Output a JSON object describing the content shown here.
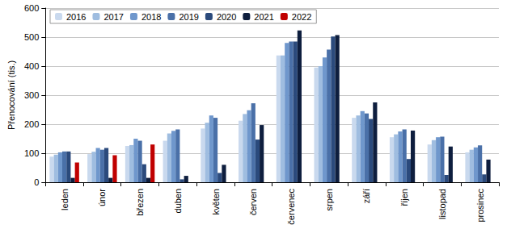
{
  "chart_data": {
    "type": "bar",
    "y_label": "Přenocování (tis.)",
    "categories": [
      "leden",
      "únor",
      "březen",
      "duben",
      "květen",
      "červen",
      "červenec",
      "srpen",
      "září",
      "říjen",
      "listopad",
      "prosinec"
    ],
    "series": [
      {
        "name": "2016",
        "color": "#c9d9ee",
        "values": [
          88,
          97,
          125,
          143,
          185,
          212,
          437,
          395,
          222,
          155,
          130,
          103
        ]
      },
      {
        "name": "2017",
        "color": "#9fbde0",
        "values": [
          95,
          105,
          128,
          168,
          205,
          235,
          437,
          400,
          230,
          165,
          145,
          112
        ]
      },
      {
        "name": "2018",
        "color": "#6f97cc",
        "values": [
          103,
          118,
          150,
          177,
          230,
          248,
          480,
          430,
          245,
          175,
          155,
          120
        ]
      },
      {
        "name": "2019",
        "color": "#4a70a8",
        "values": [
          106,
          112,
          143,
          182,
          222,
          272,
          485,
          457,
          237,
          182,
          157,
          127
        ]
      },
      {
        "name": "2020",
        "color": "#2b4a7c",
        "values": [
          106,
          118,
          62,
          10,
          32,
          147,
          485,
          502,
          218,
          80,
          25,
          27
        ]
      },
      {
        "name": "2021",
        "color": "#0e1e3e",
        "values": [
          15,
          15,
          15,
          22,
          60,
          197,
          523,
          507,
          275,
          178,
          123,
          78
        ]
      },
      {
        "name": "2022",
        "color": "#c00000",
        "values": [
          68,
          93,
          130,
          null,
          null,
          null,
          null,
          null,
          null,
          null,
          null,
          null
        ]
      }
    ],
    "ylim": [
      0,
      600
    ],
    "yticks": [
      0,
      100,
      200,
      300,
      400,
      500,
      600
    ],
    "grid": true,
    "legend": "top-left"
  }
}
